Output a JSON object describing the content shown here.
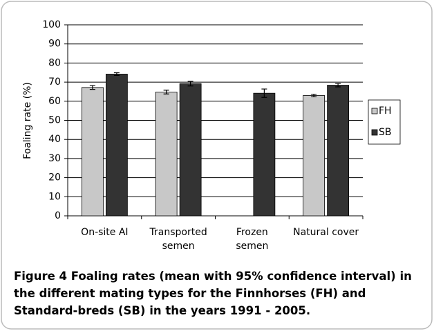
{
  "chart_data": {
    "type": "bar",
    "y_label": "Foaling rate (%)",
    "categories": [
      "On-site AI",
      "Transported\nsemen",
      "Frozen\nsemen",
      "Natural cover"
    ],
    "series": [
      {
        "name": "FH",
        "color": "#c8c8c8",
        "values": [
          67.2,
          64.8,
          null,
          63.0
        ],
        "errors": [
          1.0,
          1.0,
          null,
          0.7
        ]
      },
      {
        "name": "SB",
        "color": "#333333",
        "values": [
          74.2,
          69.2,
          64.2,
          68.4
        ],
        "errors": [
          0.7,
          1.2,
          2.2,
          0.9
        ]
      }
    ],
    "ylim": [
      0,
      100
    ],
    "yticks": [
      0,
      10,
      20,
      30,
      40,
      50,
      60,
      70,
      80,
      90,
      100
    ],
    "grid": true,
    "legend": "right"
  },
  "caption": {
    "label": "Figure 4",
    "text": "Foaling rates (mean with 95% confidence interval) in the different mating types for the Finnhorses (FH) and Standard-breds (SB) in the years 1991 - 2005."
  }
}
